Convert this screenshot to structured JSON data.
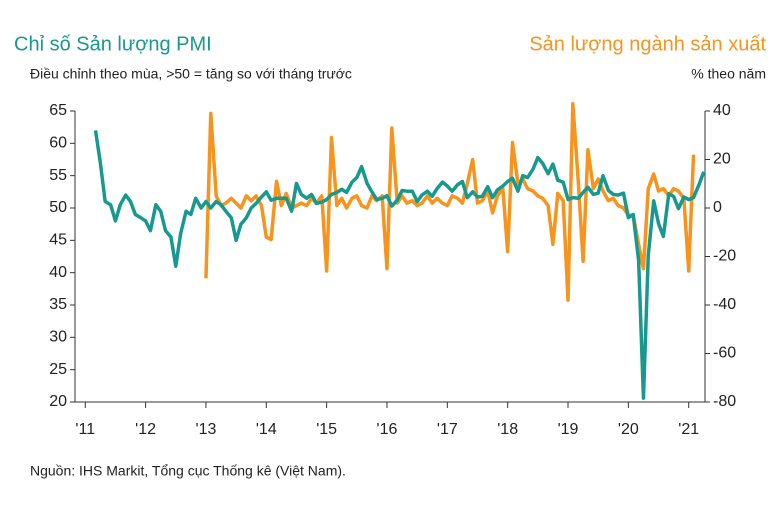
{
  "chart_data": {
    "type": "line",
    "title": "Chỉ số Sản lượng PMI",
    "subtitle": "Điều chỉnh theo mùa, >50 = tăng so với tháng trước",
    "title_right": "Sản lượng ngành sản xuất",
    "subtitle_right": "% theo năm",
    "source": "Nguồn: IHS Markit, Tổng cục Thống kê (Việt Nam).",
    "x": [
      2011.17,
      2011.25,
      2011.33,
      2011.42,
      2011.5,
      2011.58,
      2011.67,
      2011.75,
      2011.83,
      2011.92,
      2012.0,
      2012.08,
      2012.17,
      2012.25,
      2012.33,
      2012.42,
      2012.5,
      2012.58,
      2012.67,
      2012.75,
      2012.83,
      2012.92,
      2013.0,
      2013.08,
      2013.17,
      2013.25,
      2013.33,
      2013.42,
      2013.5,
      2013.58,
      2013.67,
      2013.75,
      2013.83,
      2013.92,
      2014.0,
      2014.08,
      2014.17,
      2014.25,
      2014.33,
      2014.42,
      2014.5,
      2014.58,
      2014.67,
      2014.75,
      2014.83,
      2014.92,
      2015.0,
      2015.08,
      2015.17,
      2015.25,
      2015.33,
      2015.42,
      2015.5,
      2015.58,
      2015.67,
      2015.75,
      2015.83,
      2015.92,
      2016.0,
      2016.08,
      2016.17,
      2016.25,
      2016.33,
      2016.42,
      2016.5,
      2016.58,
      2016.67,
      2016.75,
      2016.83,
      2016.92,
      2017.0,
      2017.08,
      2017.17,
      2017.25,
      2017.33,
      2017.42,
      2017.5,
      2017.58,
      2017.67,
      2017.75,
      2017.83,
      2017.92,
      2018.0,
      2018.08,
      2018.17,
      2018.25,
      2018.33,
      2018.42,
      2018.5,
      2018.58,
      2018.67,
      2018.75,
      2018.83,
      2018.92,
      2019.0,
      2019.08,
      2019.17,
      2019.25,
      2019.33,
      2019.42,
      2019.5,
      2019.58,
      2019.67,
      2019.75,
      2019.83,
      2019.92,
      2020.0,
      2020.08,
      2020.17,
      2020.25,
      2020.33,
      2020.42,
      2020.5,
      2020.58,
      2020.67,
      2020.75,
      2020.83,
      2020.92,
      2021.0,
      2021.08,
      2021.17,
      2021.25
    ],
    "series": [
      {
        "name": "Chỉ số Sản lượng PMI",
        "color": "#17998f",
        "axis": "y",
        "values": [
          62,
          57,
          51,
          50.5,
          48,
          50.5,
          52,
          51,
          49,
          48.5,
          48,
          46.5,
          50.5,
          49.5,
          46.5,
          45.5,
          41,
          46,
          49.5,
          49,
          51.5,
          50,
          51,
          50,
          51,
          50.5,
          49.5,
          48.5,
          45,
          47.5,
          48.5,
          50,
          50.7,
          51.7,
          52.5,
          51.2,
          51.5,
          51.5,
          51.5,
          49.5,
          53.8,
          52.1,
          51.5,
          52.1,
          50.7,
          50.9,
          51.3,
          52.1,
          52.4,
          52.9,
          52.4,
          54,
          54.7,
          56.4,
          53.8,
          52.5,
          51.3,
          51.5,
          51.9,
          50.3,
          51.2,
          52.7,
          52.6,
          52.6,
          51,
          52,
          52.6,
          51.8,
          53,
          54,
          53.4,
          52.6,
          53.6,
          54.1,
          51.6,
          52.5,
          51.7,
          51.8,
          53.3,
          51.6,
          52.8,
          53.4,
          54.1,
          54.6,
          52.6,
          55,
          54.7,
          56,
          57.8,
          56.9,
          55.3,
          56.8,
          54.3,
          54,
          51.3,
          51.6,
          51.5,
          52.4,
          53.2,
          52.1,
          52.3,
          55,
          52.7,
          52.1,
          52,
          52.3,
          48.5,
          49,
          41.9,
          20.6,
          42.7,
          51.1,
          47.6,
          45.6,
          52.2,
          51.8,
          49.9,
          51.7,
          51.3,
          51.6,
          53.6,
          55.6
        ]
      },
      {
        "name": "Sản lượng ngành sản xuất",
        "color": "#f7941d",
        "axis": "y2",
        "values": [
          null,
          null,
          null,
          null,
          null,
          null,
          null,
          null,
          null,
          null,
          null,
          null,
          null,
          null,
          null,
          null,
          null,
          null,
          null,
          null,
          null,
          null,
          -29,
          39,
          5,
          1,
          2,
          4,
          2,
          0,
          5,
          3,
          5,
          1,
          -12,
          -13,
          11,
          1,
          6,
          0,
          1,
          2,
          1,
          4,
          2,
          5,
          -26,
          29,
          1,
          4,
          0,
          4,
          5,
          1,
          0,
          5,
          3,
          5,
          -25,
          33,
          2,
          5,
          2,
          3,
          1,
          2,
          5,
          2,
          4,
          2,
          1,
          5,
          4,
          2,
          10,
          20,
          2,
          3,
          7,
          -2,
          5,
          8,
          -18,
          27,
          10,
          12,
          8,
          7,
          5,
          4,
          1,
          -15,
          6,
          3,
          -38,
          43,
          11,
          -22,
          24,
          8,
          12,
          7,
          3,
          4,
          1,
          0,
          -3,
          -3,
          -15,
          -25,
          8,
          14,
          7,
          8,
          5,
          8,
          7,
          4,
          -26,
          22,
          null,
          null
        ]
      }
    ],
    "xlim": [
      2010.83,
      2021.27
    ],
    "xticks": [
      {
        "value": 2011,
        "label": "'11"
      },
      {
        "value": 2012,
        "label": "'12"
      },
      {
        "value": 2013,
        "label": "'13"
      },
      {
        "value": 2014,
        "label": "'14"
      },
      {
        "value": 2015,
        "label": "'15"
      },
      {
        "value": 2016,
        "label": "'16"
      },
      {
        "value": 2017,
        "label": "'17"
      },
      {
        "value": 2018,
        "label": "'18"
      },
      {
        "value": 2019,
        "label": "'19"
      },
      {
        "value": 2020,
        "label": "'20"
      },
      {
        "value": 2021,
        "label": "'21"
      }
    ],
    "ylim": [
      20,
      65
    ],
    "yticks": [
      20,
      25,
      30,
      35,
      40,
      45,
      50,
      55,
      60,
      65
    ],
    "y2lim": [
      -80,
      40
    ],
    "y2ticks": [
      -80,
      -60,
      -40,
      -20,
      0,
      20,
      40
    ],
    "grid": false
  }
}
